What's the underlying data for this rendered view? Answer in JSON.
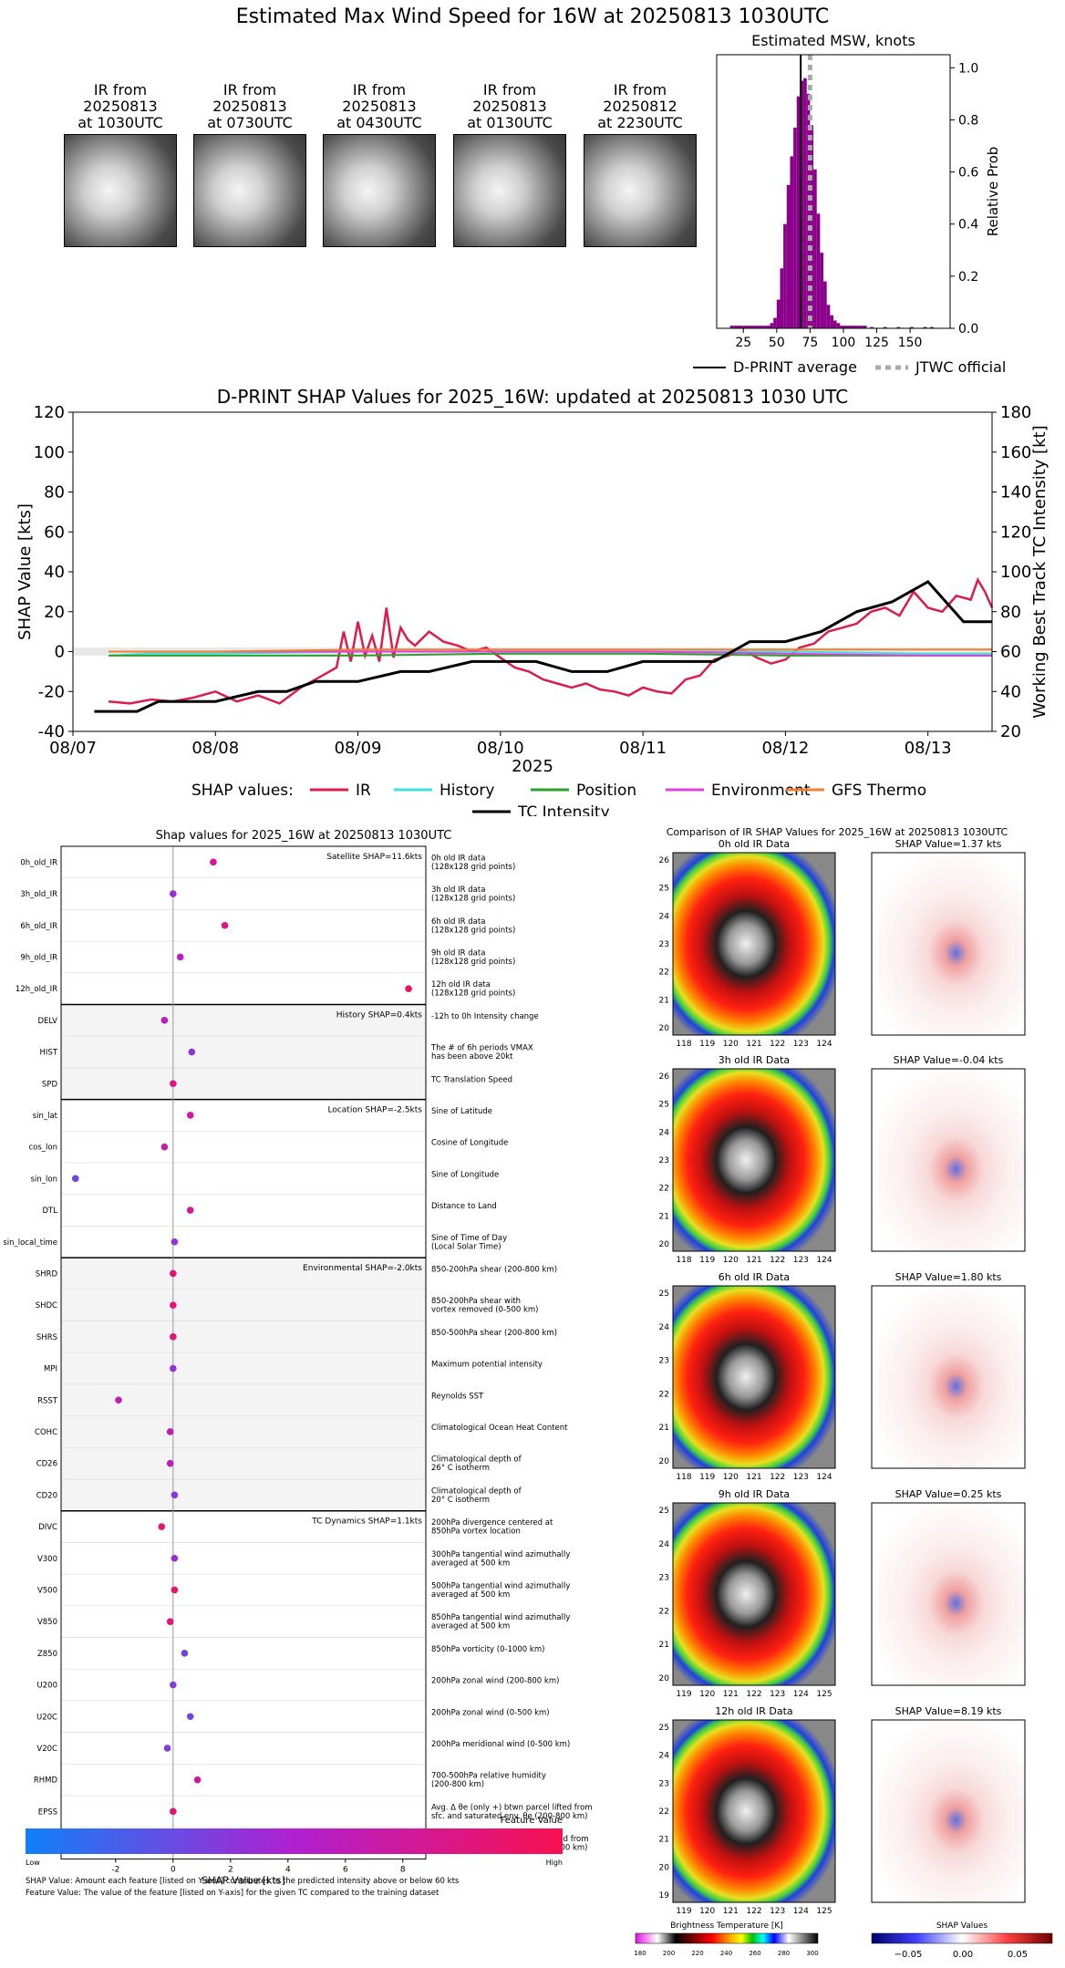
{
  "main_title": "Estimated Max Wind Speed for 16W at 20250813 1030UTC",
  "thumbnails": [
    {
      "label": "IR from\n20250813\nat 1030UTC"
    },
    {
      "label": "IR from\n20250813\nat 0730UTC"
    },
    {
      "label": "IR from\n20250813\nat 0430UTC"
    },
    {
      "label": "IR from\n20250813\nat 0130UTC"
    },
    {
      "label": "IR from\n20250812\nat 2230UTC"
    }
  ],
  "colors": {
    "ir": "#dc1c4c",
    "history": "#40e0e0",
    "position": "#2ca02c",
    "environment": "#e040e0",
    "gfs": "#f08030",
    "tc": "#000000",
    "hist_bar": "#8b008b"
  },
  "chart_data": [
    {
      "type": "bar",
      "title": "Estimated MSW, knots",
      "ylabel": "Relative Prob",
      "xlim": [
        5,
        180
      ],
      "ylim": [
        0,
        1.05
      ],
      "x_ticks": [
        25,
        50,
        75,
        100,
        125,
        150
      ],
      "y_ticks": [
        "0.0",
        "0.2",
        "0.4",
        "0.6",
        "0.8",
        "1.0"
      ],
      "bin_width": 2.5,
      "bins_x": [
        15,
        17.5,
        20,
        22.5,
        25,
        27.5,
        30,
        32.5,
        35,
        37.5,
        40,
        42.5,
        45,
        47.5,
        50,
        52.5,
        55,
        57.5,
        60,
        62.5,
        65,
        67.5,
        70,
        72.5,
        75,
        77.5,
        80,
        82.5,
        85,
        87.5,
        90,
        92.5,
        95,
        97.5,
        100,
        102.5,
        105,
        107.5,
        110,
        112.5,
        115,
        120,
        130,
        140,
        150,
        160,
        165
      ],
      "bins_y": [
        0.01,
        0.01,
        0.01,
        0.01,
        0.01,
        0.01,
        0.01,
        0.01,
        0.01,
        0.01,
        0.01,
        0.01,
        0.02,
        0.04,
        0.11,
        0.23,
        0.4,
        0.55,
        0.66,
        0.77,
        0.89,
        0.95,
        0.96,
        0.9,
        0.78,
        0.61,
        0.44,
        0.29,
        0.18,
        0.09,
        0.05,
        0.03,
        0.02,
        0.01,
        0.01,
        0.01,
        0.01,
        0.01,
        0.01,
        0.01,
        0.01,
        0.005,
        0.005,
        0.005,
        0.005,
        0.005,
        0.005
      ],
      "dprint_average": 68,
      "jtwc_official": 75,
      "legend": [
        {
          "name": "D-PRINT average"
        },
        {
          "name": "JTWC official"
        }
      ]
    },
    {
      "type": "line",
      "title": "D-PRINT SHAP Values for 2025_16W: updated at 20250813 1030 UTC",
      "xlabel": "2025",
      "ylabel": "SHAP Value [kts]",
      "y2label": "Working Best Track TC Intensity [kt]",
      "xlim": [
        7.0,
        13.45
      ],
      "ylim": [
        -40,
        120
      ],
      "y2lim": [
        20,
        180
      ],
      "x_ticks": [
        {
          "v": 7,
          "label": "08/07"
        },
        {
          "v": 8,
          "label": "08/08"
        },
        {
          "v": 9,
          "label": "08/09"
        },
        {
          "v": 10,
          "label": "08/10"
        },
        {
          "v": 11,
          "label": "08/11"
        },
        {
          "v": 12,
          "label": "08/12"
        },
        {
          "v": 13,
          "label": "08/13"
        }
      ],
      "y_ticks": [
        -40,
        -20,
        0,
        20,
        40,
        60,
        80,
        100,
        120
      ],
      "y2_ticks": [
        20,
        40,
        60,
        80,
        100,
        120,
        140,
        160,
        180
      ],
      "legend_title": "SHAP values:",
      "series": [
        {
          "name": "IR",
          "key": "ir",
          "x": [
            7.25,
            7.4,
            7.55,
            7.7,
            7.85,
            8.0,
            8.15,
            8.3,
            8.45,
            8.6,
            8.75,
            8.85,
            8.9,
            8.95,
            9.0,
            9.05,
            9.1,
            9.15,
            9.2,
            9.25,
            9.3,
            9.35,
            9.4,
            9.5,
            9.6,
            9.7,
            9.8,
            9.9,
            10.0,
            10.1,
            10.2,
            10.3,
            10.4,
            10.5,
            10.6,
            10.7,
            10.8,
            10.9,
            11.0,
            11.1,
            11.2,
            11.3,
            11.4,
            11.5,
            11.6,
            11.7,
            11.8,
            11.9,
            12.0,
            12.1,
            12.2,
            12.3,
            12.4,
            12.5,
            12.6,
            12.7,
            12.8,
            12.9,
            13.0,
            13.1,
            13.2,
            13.3,
            13.35,
            13.4,
            13.45
          ],
          "y": [
            -25,
            -26,
            -24,
            -25,
            -23,
            -20,
            -25,
            -22,
            -26,
            -18,
            -12,
            -8,
            10,
            -5,
            15,
            -2,
            8,
            -5,
            22,
            -3,
            12,
            6,
            3,
            10,
            5,
            3,
            0,
            2,
            -3,
            -8,
            -10,
            -14,
            -16,
            -18,
            -16,
            -19,
            -20,
            -22,
            -18,
            -20,
            -21,
            -14,
            -12,
            -4,
            -2,
            1,
            -3,
            -6,
            -4,
            2,
            4,
            10,
            12,
            14,
            20,
            22,
            18,
            30,
            22,
            20,
            28,
            26,
            36,
            30,
            22
          ]
        },
        {
          "name": "History",
          "key": "history",
          "x": [
            7.25,
            7.5,
            8.0,
            9.0,
            10.0,
            11.0,
            12.0,
            13.0,
            13.45
          ],
          "y": [
            -2,
            -1,
            -1,
            0,
            0,
            0,
            0,
            -1,
            -1
          ]
        },
        {
          "name": "Position",
          "key": "position",
          "x": [
            7.25,
            8.0,
            9.0,
            10.0,
            11.0,
            12.0,
            13.0,
            13.45
          ],
          "y": [
            -2,
            -2,
            -2,
            -1,
            -1,
            -2,
            -2,
            -2
          ]
        },
        {
          "name": "Environment",
          "key": "environment",
          "x": [
            7.25,
            8.0,
            9.0,
            10.0,
            11.0,
            12.0,
            13.0,
            13.45
          ],
          "y": [
            0,
            0,
            0,
            0,
            0,
            -1,
            -2,
            -2
          ]
        },
        {
          "name": "GFS Thermo",
          "key": "gfs",
          "x": [
            7.25,
            8.0,
            9.0,
            10.0,
            11.0,
            12.0,
            13.0,
            13.45
          ],
          "y": [
            0,
            0,
            1,
            1,
            1,
            1,
            1,
            1
          ]
        },
        {
          "name": "TC Intensity",
          "key": "tc",
          "axis": "right",
          "x": [
            7.15,
            7.45,
            7.6,
            8.0,
            8.3,
            8.5,
            8.7,
            9.0,
            9.3,
            9.5,
            9.8,
            10.0,
            10.25,
            10.5,
            10.75,
            11.0,
            11.25,
            11.5,
            11.75,
            12.0,
            12.25,
            12.5,
            12.75,
            13.0,
            13.25,
            13.45
          ],
          "y": [
            30,
            30,
            35,
            35,
            40,
            40,
            45,
            45,
            50,
            50,
            55,
            55,
            55,
            50,
            50,
            55,
            55,
            55,
            65,
            65,
            70,
            80,
            85,
            95,
            75,
            75
          ]
        }
      ]
    },
    {
      "type": "scatter",
      "title": "Shap values for 2025_16W at 20250813 1030UTC",
      "xlabel": "SHAP Value [kts]",
      "xlim": [
        -3.9,
        8.8
      ],
      "x_ticks": [
        -2,
        0,
        2,
        4,
        6,
        8
      ],
      "groups": [
        {
          "label": "Satellite SHAP=11.6kts",
          "shade": false,
          "features": [
            {
              "name": "0h_old_IR",
              "value": 1.4,
              "pos": 0.75,
              "desc": "0h old IR data\n(128x128 grid points)"
            },
            {
              "name": "3h_old_IR",
              "value": 0.0,
              "pos": 0.45,
              "desc": "3h old IR data\n(128x128 grid points)"
            },
            {
              "name": "6h_old_IR",
              "value": 1.8,
              "pos": 0.8,
              "desc": "6h old IR data\n(128x128 grid points)"
            },
            {
              "name": "9h_old_IR",
              "value": 0.25,
              "pos": 0.55,
              "desc": "9h old IR data\n(128x128 grid points)"
            },
            {
              "name": "12h_old_IR",
              "value": 8.2,
              "pos": 0.95,
              "desc": "12h old IR data\n(128x128 grid points)"
            }
          ]
        },
        {
          "label": "History SHAP=0.4kts",
          "shade": true,
          "features": [
            {
              "name": "DELV",
              "value": -0.3,
              "pos": 0.6,
              "desc": "-12h to 0h Intensity change"
            },
            {
              "name": "HIST",
              "value": 0.65,
              "pos": 0.4,
              "desc": "The # of 6h periods VMAX\nhas been above 20kt"
            },
            {
              "name": "SPD",
              "value": 0.0,
              "pos": 0.8,
              "desc": "TC Translation Speed"
            }
          ]
        },
        {
          "label": "Location SHAP=-2.5kts",
          "shade": false,
          "features": [
            {
              "name": "sin_lat",
              "value": 0.6,
              "pos": 0.7,
              "desc": "Sine of Latitude"
            },
            {
              "name": "cos_lon",
              "value": -0.3,
              "pos": 0.65,
              "desc": "Cosine of Longitude"
            },
            {
              "name": "sin_lon",
              "value": -3.4,
              "pos": 0.3,
              "desc": "Sine of Longitude"
            },
            {
              "name": "DTL",
              "value": 0.6,
              "pos": 0.75,
              "desc": "Distance to Land"
            },
            {
              "name": "sin_local_time",
              "value": 0.05,
              "pos": 0.4,
              "desc": "Sine of Time of Day\n(Local Solar Time)"
            }
          ]
        },
        {
          "label": "Environmental SHAP=-2.0kts",
          "shade": true,
          "features": [
            {
              "name": "SHRD",
              "value": 0.0,
              "pos": 0.85,
              "desc": "850-200hPa shear (200-800 km)"
            },
            {
              "name": "SHDC",
              "value": 0.0,
              "pos": 0.85,
              "desc": "850-200hPa shear with\nvortex removed (0-500 km)"
            },
            {
              "name": "SHRS",
              "value": 0.0,
              "pos": 0.85,
              "desc": "850-500hPa shear (200-800 km)"
            },
            {
              "name": "MPI",
              "value": 0.0,
              "pos": 0.4,
              "desc": "Maximum potential intensity"
            },
            {
              "name": "RSST",
              "value": -1.9,
              "pos": 0.6,
              "desc": "Reynolds SST"
            },
            {
              "name": "COHC",
              "value": -0.1,
              "pos": 0.6,
              "desc": "Climatological Ocean Heat Content"
            },
            {
              "name": "CD26",
              "value": -0.1,
              "pos": 0.6,
              "desc": "Climatological depth of\n26° C isotherm"
            },
            {
              "name": "CD20",
              "value": 0.05,
              "pos": 0.35,
              "desc": "Climatological depth of\n20° C isotherm"
            }
          ]
        },
        {
          "label": "TC Dynamics SHAP=1.1kts",
          "shade": false,
          "features": [
            {
              "name": "DIVC",
              "value": -0.4,
              "pos": 0.85,
              "desc": "200hPa divergence centered at\n850hPa vortex location"
            },
            {
              "name": "V300",
              "value": 0.05,
              "pos": 0.45,
              "desc": "300hPa tangential wind azimuthally\naveraged at 500 km"
            },
            {
              "name": "V500",
              "value": 0.05,
              "pos": 0.9,
              "desc": "500hPa tangential wind azimuthally\naveraged at 500 km"
            },
            {
              "name": "V850",
              "value": -0.1,
              "pos": 0.85,
              "desc": "850hPa tangential wind azimuthally\naveraged at 500 km"
            },
            {
              "name": "Z850",
              "value": 0.4,
              "pos": 0.3,
              "desc": "850hPa vorticity (0-1000 km)"
            },
            {
              "name": "U200",
              "value": 0.0,
              "pos": 0.35,
              "desc": "200hPa zonal wind (200-800 km)"
            },
            {
              "name": "U20C",
              "value": 0.6,
              "pos": 0.3,
              "desc": "200hPa zonal wind (0-500 km)"
            },
            {
              "name": "V20C",
              "value": -0.2,
              "pos": 0.35,
              "desc": "200hPa meridional wind (0-500 km)"
            },
            {
              "name": "RHMD",
              "value": 0.85,
              "pos": 0.7,
              "desc": "700-500hPa relative humidity\n(200-800 km)"
            },
            {
              "name": "EPSS",
              "value": 0.0,
              "pos": 0.85,
              "desc": "Avg. Δ θe (only +) btwn parcel lifted from\nsfc. and saturated env. θe (200-800 km)"
            },
            {
              "name": "ENSS",
              "value": 0.05,
              "pos": 0.85,
              "desc": "Avg. Δ θe (only -) btwn parcel lifted from\nsfc. and saturated env. θe (200-800 km)"
            }
          ]
        }
      ]
    }
  ],
  "feature_colorbar": {
    "title": "Feature Value",
    "low": "Low",
    "high": "High"
  },
  "footnotes": [
    "SHAP Value: Amount each feature [listed on Y-axis] contributes to the predicted intensity above or below 60 kts",
    "Feature Value: The value of the feature [listed on Y-axis] for the given TC compared to the training dataset"
  ],
  "comparison": {
    "title": "Comparison of IR SHAP Values for 2025_16W at 20250813 1030UTC",
    "rows": [
      {
        "ir_title": "0h old IR Data",
        "shap_title": "SHAP Value=1.37 kts",
        "y_ticks": [
          "26",
          "25",
          "24",
          "23",
          "22",
          "21",
          "20"
        ],
        "x_ticks": [
          "118",
          "119",
          "120",
          "121",
          "122",
          "123",
          "124"
        ]
      },
      {
        "ir_title": "3h old IR Data",
        "shap_title": "SHAP Value=-0.04 kts",
        "y_ticks": [
          "26",
          "25",
          "24",
          "23",
          "22",
          "21",
          "20"
        ],
        "x_ticks": [
          "118",
          "119",
          "120",
          "121",
          "122",
          "123",
          "124"
        ]
      },
      {
        "ir_title": "6h old IR Data",
        "shap_title": "SHAP Value=1.80 kts",
        "y_ticks": [
          "25",
          "24",
          "23",
          "22",
          "21",
          "20"
        ],
        "x_ticks": [
          "118",
          "119",
          "120",
          "121",
          "122",
          "123",
          "124"
        ]
      },
      {
        "ir_title": "9h old IR Data",
        "shap_title": "SHAP Value=0.25 kts",
        "y_ticks": [
          "25",
          "24",
          "23",
          "22",
          "21",
          "20"
        ],
        "x_ticks": [
          "119",
          "120",
          "121",
          "122",
          "123",
          "124",
          "125"
        ]
      },
      {
        "ir_title": "12h old IR Data",
        "shap_title": "SHAP Value=8.19 kts",
        "y_ticks": [
          "25",
          "24",
          "23",
          "22",
          "21",
          "20",
          "19"
        ],
        "x_ticks": [
          "119",
          "120",
          "121",
          "122",
          "123",
          "124",
          "125"
        ]
      }
    ],
    "bt_colorbar": {
      "title": "Brightness Temperature [K]",
      "ticks": [
        "180",
        "200",
        "220",
        "240",
        "260",
        "280",
        "300"
      ]
    },
    "shap_colorbar": {
      "title": "SHAP Values",
      "ticks": [
        "−0.05",
        "0.00",
        "0.05"
      ]
    }
  }
}
